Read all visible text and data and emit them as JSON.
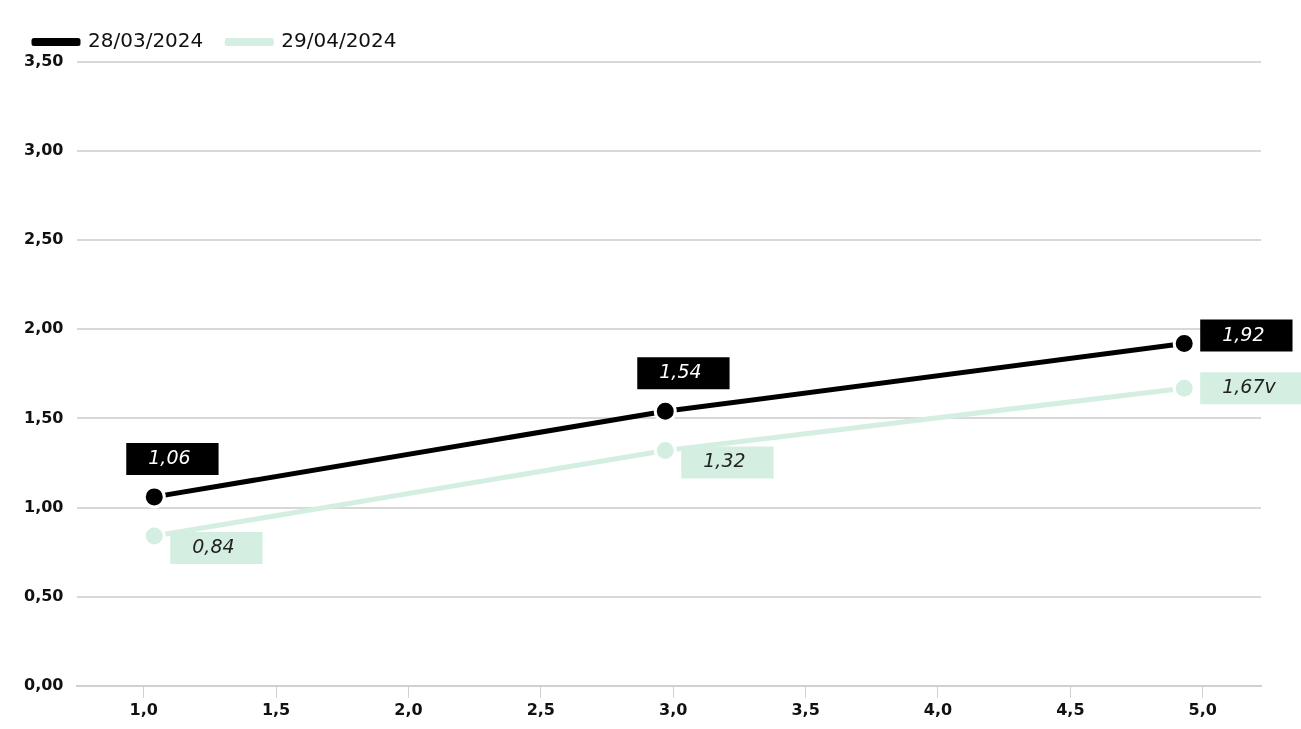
{
  "chart_data": {
    "type": "line",
    "x": [
      1.04,
      2.97,
      4.93
    ],
    "series": [
      {
        "name": "28/03/2024",
        "color": "#000000",
        "values": [
          1.06,
          1.54,
          1.92
        ],
        "value_labels": [
          "1,06",
          "1,54",
          "1,92"
        ]
      },
      {
        "name": "29/04/2024",
        "color": "#d4efe1",
        "values": [
          0.84,
          1.32,
          1.67
        ],
        "value_labels": [
          "0,84",
          "1,32",
          "1,67v"
        ]
      }
    ],
    "xlim": [
      0.75,
      5.22
    ],
    "xticks": [
      {
        "value": 1,
        "label": "1,0"
      },
      {
        "value": 1.5,
        "label": "1,5"
      },
      {
        "value": 2,
        "label": "2,0"
      },
      {
        "value": 2.5,
        "label": "2,5"
      },
      {
        "value": 3,
        "label": "3,0"
      },
      {
        "value": 3.5,
        "label": "3,5"
      },
      {
        "value": 4,
        "label": "4,0"
      },
      {
        "value": 4.5,
        "label": "4,5"
      },
      {
        "value": 5,
        "label": "5,0"
      }
    ],
    "ylim": [
      0,
      3.5
    ],
    "yticks": [
      {
        "value": 0,
        "label": "0,00"
      },
      {
        "value": 0.5,
        "label": "0,50"
      },
      {
        "value": 1,
        "label": "1,00"
      },
      {
        "value": 1.5,
        "label": "1,50"
      },
      {
        "value": 2,
        "label": "2,00"
      },
      {
        "value": 2.5,
        "label": "2,50"
      },
      {
        "value": 3,
        "label": "3,00"
      },
      {
        "value": 3.5,
        "label": "3,50"
      }
    ],
    "grid": "y",
    "legend": "top left",
    "marker": "circle",
    "line_style": "solid"
  }
}
